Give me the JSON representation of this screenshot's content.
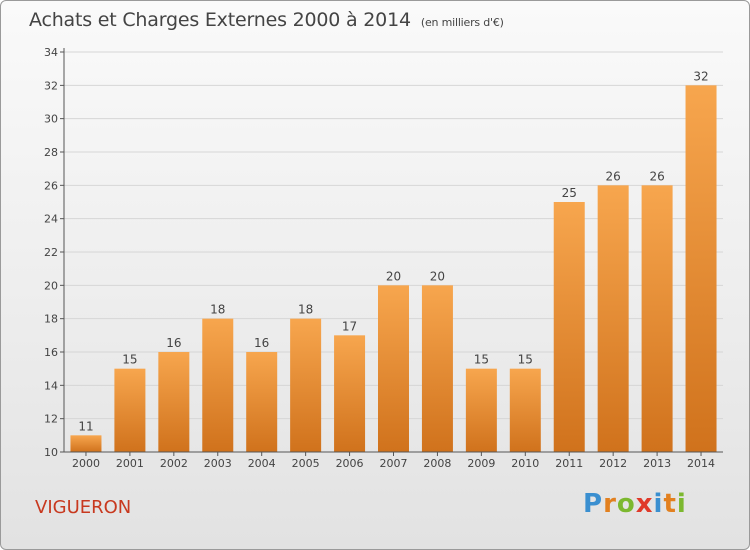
{
  "title": "Achats et Charges Externes 2000 à 2014",
  "subtitle": "(en milliers d'€)",
  "location": "VIGUERON",
  "logo": {
    "text": "Proxiti",
    "letters": [
      {
        "ch": "P",
        "color": "#3a8fd0"
      },
      {
        "ch": "r",
        "color": "#e2801f"
      },
      {
        "ch": "o",
        "color": "#7cb82f"
      },
      {
        "ch": "x",
        "color": "#e03a2a"
      },
      {
        "ch": "i",
        "color": "#3a8fd0"
      },
      {
        "ch": "t",
        "color": "#e2801f"
      },
      {
        "ch": "i",
        "color": "#7cb82f"
      }
    ]
  },
  "colors": {
    "bar_light": "#f7a64e",
    "bar_dark": "#d0721c",
    "axis": "#555555",
    "grid": "#d6d6d6",
    "text": "#444444",
    "location": "#c8391f"
  },
  "chart_data": {
    "type": "bar",
    "title": "Achats et Charges Externes 2000 à 2014",
    "subtitle": "(en milliers d'€)",
    "categories": [
      "2000",
      "2001",
      "2002",
      "2003",
      "2004",
      "2005",
      "2006",
      "2007",
      "2008",
      "2009",
      "2010",
      "2011",
      "2012",
      "2013",
      "2014"
    ],
    "values": [
      11,
      15,
      16,
      18,
      16,
      18,
      17,
      20,
      20,
      15,
      15,
      25,
      26,
      26,
      32
    ],
    "ylim": [
      10,
      34
    ],
    "yticks": [
      10,
      12,
      14,
      16,
      18,
      20,
      22,
      24,
      26,
      28,
      30,
      32,
      34
    ],
    "grid": true,
    "data_labels": true
  }
}
